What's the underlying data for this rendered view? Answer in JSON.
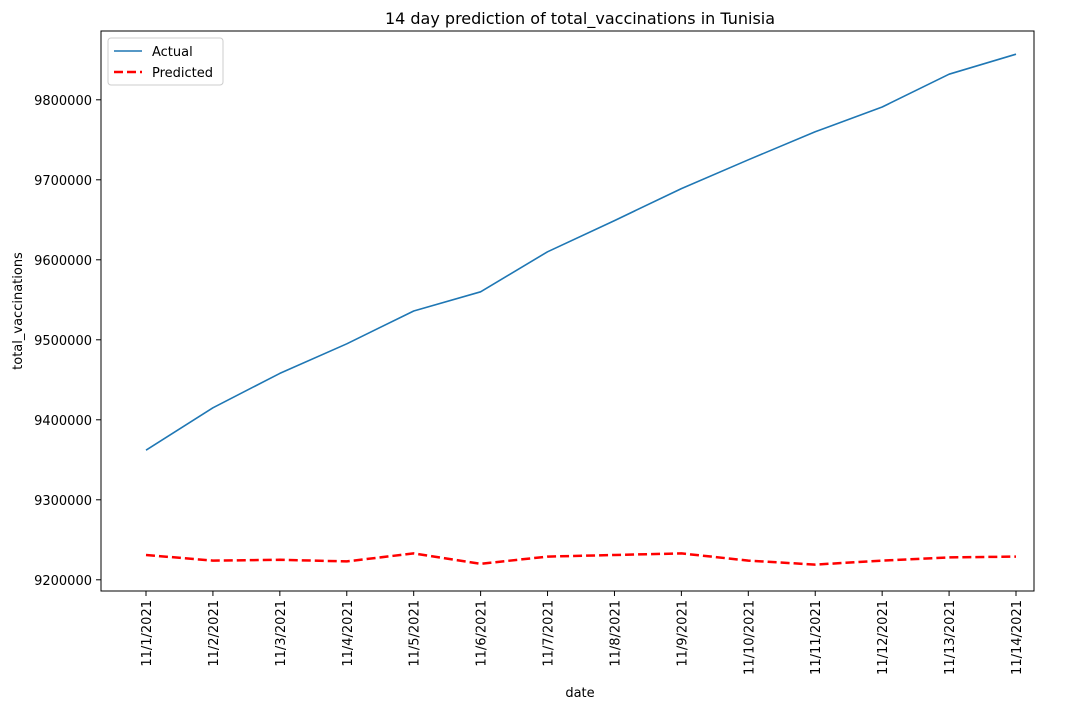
{
  "chart_data": {
    "type": "line",
    "title": "14 day prediction of total_vaccinations in Tunisia",
    "xlabel": "date",
    "ylabel": "total_vaccinations",
    "categories": [
      "11/1/2021",
      "11/2/2021",
      "11/3/2021",
      "11/4/2021",
      "11/5/2021",
      "11/6/2021",
      "11/7/2021",
      "11/8/2021",
      "11/9/2021",
      "11/10/2021",
      "11/11/2021",
      "11/12/2021",
      "11/13/2021",
      "11/14/2021"
    ],
    "yticks": [
      9200000,
      9300000,
      9400000,
      9500000,
      9600000,
      9700000,
      9800000
    ],
    "ylim": [
      9186000,
      9886000
    ],
    "grid": false,
    "legend_position": "top-left",
    "series": [
      {
        "name": "Actual",
        "color": "#1f77b4",
        "style": "solid",
        "values": [
          9362000,
          9415000,
          9458000,
          9495000,
          9536000,
          9560000,
          9610000,
          9649000,
          9689000,
          9725000,
          9760000,
          9791000,
          9832000,
          9857000
        ]
      },
      {
        "name": "Predicted",
        "color": "#ff0000",
        "style": "dashed",
        "values": [
          9231000,
          9224000,
          9225000,
          9223000,
          9233000,
          9220000,
          9229000,
          9231000,
          9233000,
          9224000,
          9219000,
          9224000,
          9228000,
          9229000
        ]
      }
    ]
  }
}
